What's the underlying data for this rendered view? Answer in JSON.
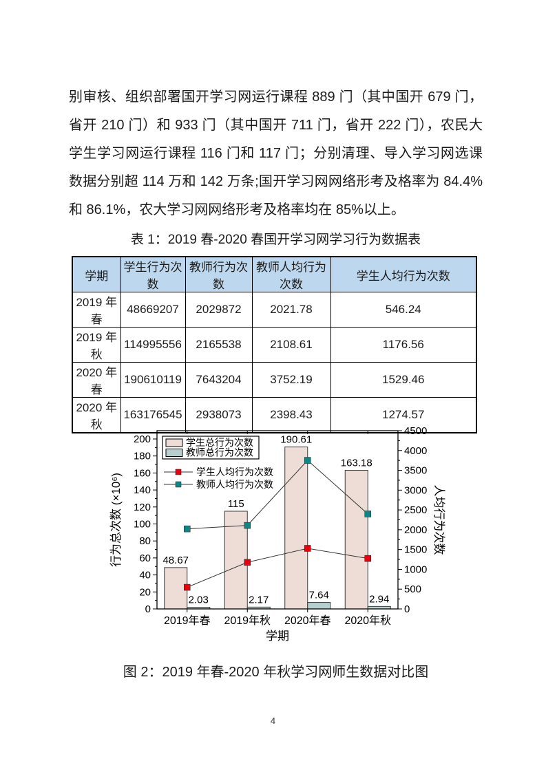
{
  "paragraph": {
    "lines": [
      "别审核、组织部署国开学习网运行课程 889 门（其中国开 679 门，",
      "省开 210 门）和 933 门（其中国开 711 门，省开 222 门），农民大",
      "学生学习网运行课程 116 门和 117 门；分别清理、导入学习网选课",
      "数据分别超 114 万和 142 万条;国开学习网网络形考及格率为 84.4%",
      "和 86.1%，农大学习网网络形考及格率均在 85%以上。"
    ]
  },
  "table": {
    "caption": "表 1：2019 春-2020 春国开学习网学习行为数据表",
    "header_bg": "#bdd7ee",
    "headers": [
      "学期",
      "学生行为次数",
      "教师行为次数",
      "教师人均行为次数",
      "学生人均行为次数"
    ],
    "rows": [
      [
        "2019 年春",
        "48669207",
        "2029872",
        "2021.78",
        "546.24"
      ],
      [
        "2019 年秋",
        "114995556",
        "2165538",
        "2108.61",
        "1176.56"
      ],
      [
        "2020 年春",
        "190610119",
        "7643204",
        "3752.19",
        "1529.46"
      ],
      [
        "2020 年秋",
        "163176545",
        "2938073",
        "2398.43",
        "1274.57"
      ]
    ]
  },
  "chart_data": {
    "type": "bar",
    "subtype": "grouped bars + two lines on secondary axis",
    "categories": [
      "2019年春",
      "2019年秋",
      "2020年春",
      "2020年秋"
    ],
    "bar_series": [
      {
        "name": "学生总行为次数",
        "axis": "left",
        "color": "#eeddd6",
        "values": [
          48.67,
          115,
          190.61,
          163.18
        ],
        "labels": [
          "48.67",
          "115",
          "190.61",
          "163.18"
        ]
      },
      {
        "name": "教师总行为次数",
        "axis": "left",
        "color": "#b7cfcf",
        "values": [
          2.03,
          2.17,
          7.64,
          2.94
        ],
        "labels": [
          "2.03",
          "2.17",
          "7.64",
          "2.94"
        ]
      }
    ],
    "line_series": [
      {
        "name": "学生人均行为次数",
        "axis": "right",
        "color": "#e8000d",
        "values": [
          546.24,
          1176.56,
          1529.46,
          1274.57
        ]
      },
      {
        "name": "教师人均行为次数",
        "axis": "right",
        "color": "#0e8686",
        "values": [
          2021.78,
          2108.61,
          3752.19,
          2398.43
        ]
      }
    ],
    "left_axis": {
      "label": "行为总次数 (×10⁶)",
      "min": 0,
      "max": 200,
      "major_step": 20,
      "minor_step": 10
    },
    "right_axis": {
      "label": "人均行为次数",
      "min": 0,
      "max": 4500,
      "major_step": 500,
      "minor_step": 250
    },
    "xlabel": "学期",
    "grid": false,
    "legend_position": "top-left-inside",
    "line_color": "#333333",
    "bar_outline": "#3a3a3a"
  },
  "figure": {
    "caption": "图 2：2019 年春-2020 年秋学习网师生数据对比图"
  },
  "footer": {
    "page_number": "4"
  }
}
